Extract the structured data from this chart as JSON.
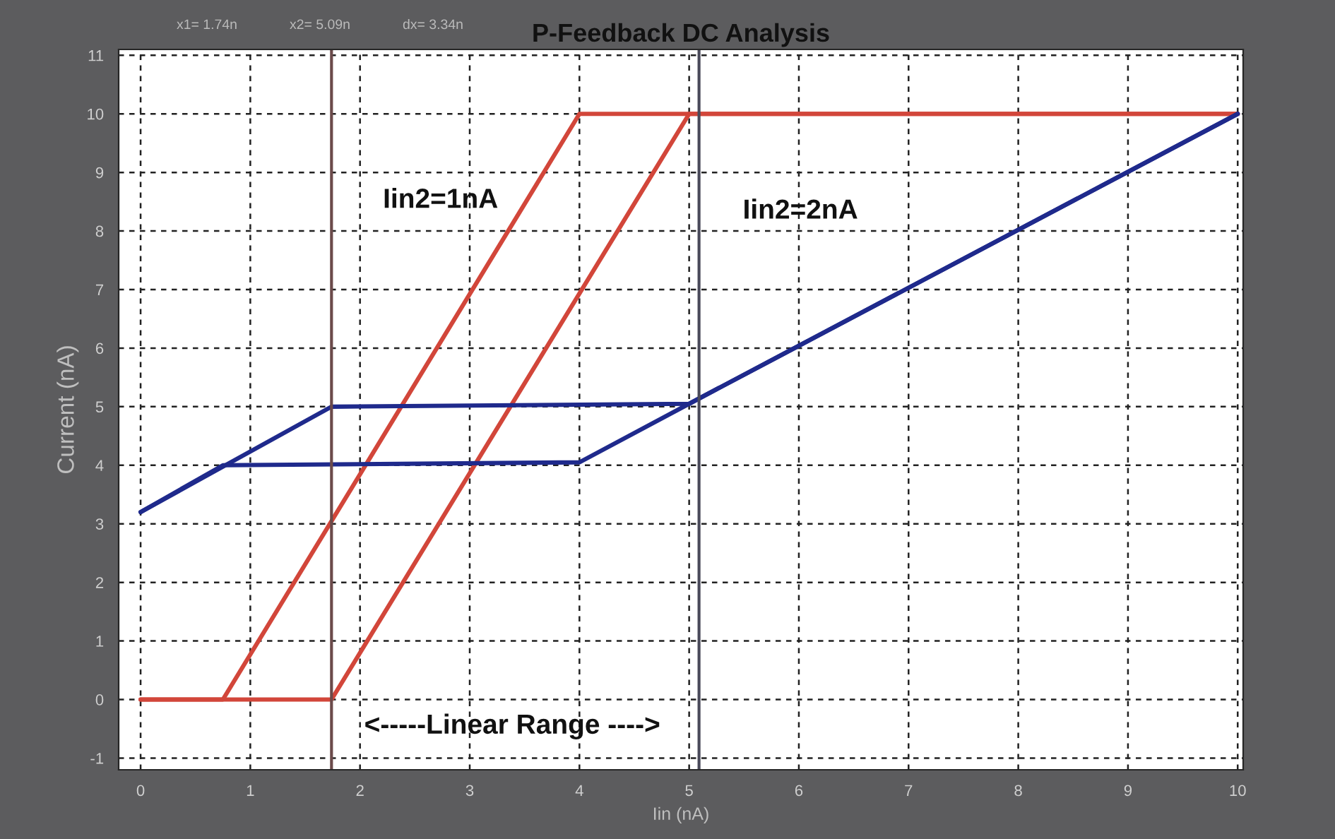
{
  "chart_data": {
    "type": "line",
    "title": "P-Feedback DC Analysis",
    "xlabel": "Iin (nA)",
    "ylabel": "Current (nA)",
    "xlim": [
      -0.2,
      10.05
    ],
    "ylim": [
      -1.2,
      11.1
    ],
    "xticks": [
      0,
      1,
      2,
      3,
      4,
      5,
      6,
      7,
      8,
      9,
      10
    ],
    "yticks": [
      -1,
      0,
      1,
      2,
      3,
      4,
      5,
      6,
      7,
      8,
      9,
      10,
      11
    ],
    "grid": true,
    "line_style": "solid",
    "marker": "none",
    "series": [
      {
        "color": "#d2463a",
        "x": [
          0,
          0.75,
          4,
          10
        ],
        "values": [
          0,
          0,
          10,
          10
        ]
      },
      {
        "color": "#d2463a",
        "x": [
          0,
          1.74,
          5,
          10
        ],
        "values": [
          0,
          0,
          10,
          10
        ]
      },
      {
        "color": "#1f2a8c",
        "x": [
          0,
          1.74,
          5,
          10
        ],
        "values": [
          3.2,
          5,
          5.05,
          10
        ]
      },
      {
        "color": "#1f2a8c",
        "x": [
          0,
          0.75,
          4,
          5,
          10
        ],
        "values": [
          3.2,
          4,
          4.05,
          5.05,
          10
        ]
      }
    ],
    "ref_lines": [
      {
        "axis": "x",
        "value": 1.74,
        "color": "#6b4a4a"
      },
      {
        "axis": "x",
        "value": 5.09,
        "color": "#4a4a5a"
      }
    ],
    "annotations": [
      "Iin2=1nA",
      "Iin2=2nA",
      "<-----Linear Range ---->",
      "x1= 1.74n",
      "x2= 5.09n",
      "dx= 3.34n"
    ]
  }
}
